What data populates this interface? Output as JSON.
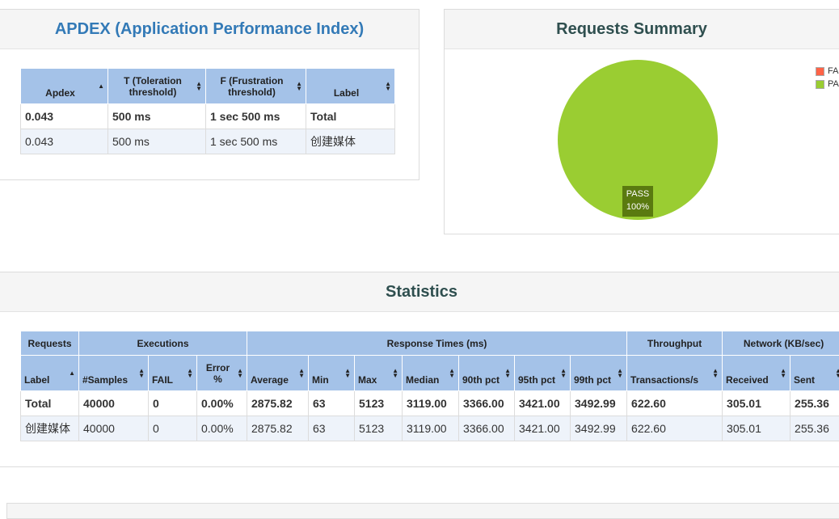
{
  "apdex": {
    "title": "APDEX (Application Performance Index)",
    "headers": [
      "Apdex",
      "T (Toleration threshold)",
      "F (Frustration threshold)",
      "Label"
    ],
    "rows": [
      {
        "apdex": "0.043",
        "t": "500 ms",
        "f": "1 sec 500 ms",
        "label": "Total"
      },
      {
        "apdex": "0.043",
        "t": "500 ms",
        "f": "1 sec 500 ms",
        "label": "创建媒体"
      }
    ]
  },
  "summary": {
    "title": "Requests Summary",
    "legend": [
      {
        "label": "FAIL",
        "color": "#ff6347"
      },
      {
        "label": "PASS",
        "color": "#9acd32"
      }
    ],
    "pie_label": "PASS",
    "pie_percent": "100%"
  },
  "chart_data": {
    "type": "pie",
    "categories": [
      "FAIL",
      "PASS"
    ],
    "values": [
      0,
      100
    ],
    "colors": [
      "#ff6347",
      "#9acd32"
    ]
  },
  "statistics": {
    "title": "Statistics",
    "groups": [
      "Requests",
      "Executions",
      "Response Times (ms)",
      "Throughput",
      "Network (KB/sec)"
    ],
    "headers": [
      "Label",
      "#Samples",
      "FAIL",
      "Error %",
      "Average",
      "Min",
      "Max",
      "Median",
      "90th pct",
      "95th pct",
      "99th pct",
      "Transactions/s",
      "Received",
      "Sent"
    ],
    "rows": [
      [
        "Total",
        "40000",
        "0",
        "0.00%",
        "2875.82",
        "63",
        "5123",
        "3119.00",
        "3366.00",
        "3421.00",
        "3492.99",
        "622.60",
        "305.01",
        "255.36"
      ],
      [
        "创建媒体",
        "40000",
        "0",
        "0.00%",
        "2875.82",
        "63",
        "5123",
        "3119.00",
        "3366.00",
        "3421.00",
        "3492.99",
        "622.60",
        "305.01",
        "255.36"
      ]
    ]
  }
}
